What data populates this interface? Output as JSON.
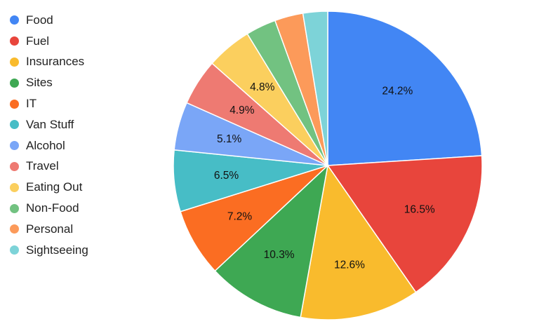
{
  "chart_data": {
    "type": "pie",
    "categories": [
      "Food",
      "Fuel",
      "Insurances",
      "Sites",
      "IT",
      "Van Stuff",
      "Alcohol",
      "Travel",
      "Eating Out",
      "Non-Food",
      "Personal",
      "Sightseeing"
    ],
    "values": [
      24.2,
      16.5,
      12.6,
      10.3,
      7.2,
      6.5,
      5.1,
      4.9,
      4.8,
      3.2,
      3.0,
      2.6
    ],
    "value_labels": [
      "24.2%",
      "16.5%",
      "12.6%",
      "10.3%",
      "7.2%",
      "6.5%",
      "5.1%",
      "4.9%",
      "4.8%",
      "",
      "",
      ""
    ],
    "colors": [
      "#4286f4",
      "#e8453c",
      "#f9bb2d",
      "#3ea853",
      "#fb6d22",
      "#47bdc6",
      "#7aa6f7",
      "#ee7a72",
      "#fbcf5e",
      "#72c281",
      "#fc9a5a",
      "#7dd3d8"
    ],
    "legend_position": "left",
    "start_angle": "top",
    "direction": "clockwise"
  }
}
